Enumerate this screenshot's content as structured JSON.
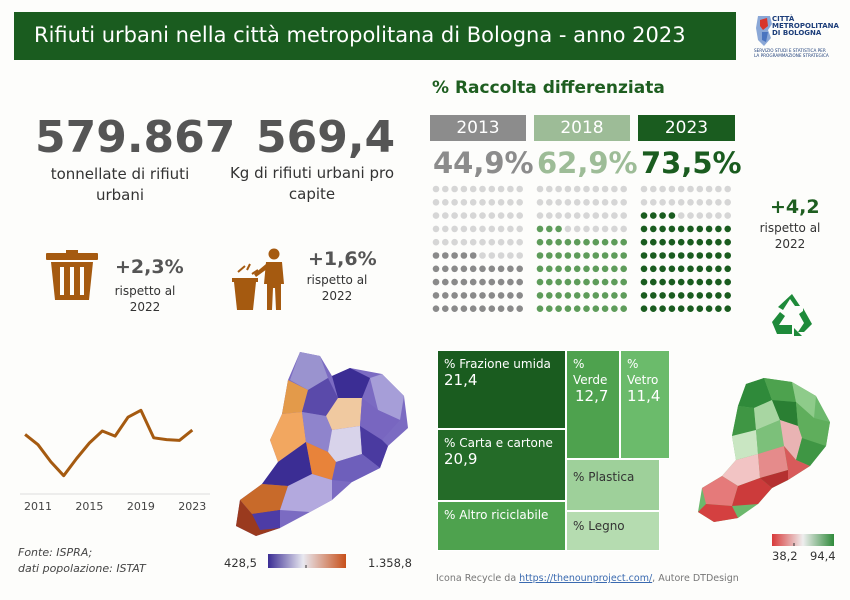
{
  "header": {
    "title": "Rifiuti urbani nella città metropolitana di Bologna - anno 2023"
  },
  "logo": {
    "title": "CITTÀ\nMETROPOLITANA\nDI BOLOGNA",
    "subtitle": "SERVIZIO STUDI E STATISTICA PER\nLA PROGRAMMAZIONE STRATEGICA",
    "icon": "bologna-metro-logo"
  },
  "kpi_total": {
    "value": "579.867",
    "label": "tonnellate di rifiuti urbani",
    "change": "+2,3%",
    "change_label": "rispetto al 2022",
    "icon": "trash-bin-icon"
  },
  "kpi_capita": {
    "value": "569,4",
    "label": "Kg di rifiuti urbani pro capite",
    "change": "+1,6%",
    "change_label": "rispetto al 2022",
    "icon": "person-throwing-trash-icon"
  },
  "raccolta": {
    "title": "% Raccolta differenziata",
    "years": [
      {
        "year": "2013",
        "pct": "44,9%",
        "value": 44.9,
        "box_color": "#8c8c8c",
        "text_color": "#8c8c8c",
        "dot_color": "#8a8a8a",
        "dot_empty": "#d6d6d6"
      },
      {
        "year": "2018",
        "pct": "62,9%",
        "value": 62.9,
        "box_color": "#9dbc97",
        "text_color": "#9dbc97",
        "dot_color": "#5e9c5a",
        "dot_empty": "#d6d6d6"
      },
      {
        "year": "2023",
        "pct": "73,5%",
        "value": 73.5,
        "box_color": "#1a5c1f",
        "text_color": "#1a5c1f",
        "dot_color": "#1a5c1f",
        "dot_empty": "#d6d6d6"
      }
    ],
    "delta": "+4,2",
    "delta_label": "rispetto al 2022",
    "icon": "recycle-icon"
  },
  "chart_data": {
    "type": "line",
    "x": [
      2010,
      2011,
      2012,
      2013,
      2014,
      2015,
      2016,
      2017,
      2018,
      2019,
      2020,
      2021,
      2022,
      2023
    ],
    "values": [
      600,
      588,
      568,
      552,
      572,
      590,
      604,
      598,
      620,
      628,
      596,
      594,
      593,
      605
    ],
    "tick_labels": [
      "2011",
      "2015",
      "2019",
      "2023"
    ],
    "tick_values": [
      2011,
      2015,
      2019,
      2023
    ],
    "ylim": [
      540,
      640
    ],
    "xlim": [
      2009.6,
      2023.6
    ],
    "color": "#a55a10"
  },
  "map_left": {
    "legend_min": "428,5",
    "legend_max": "1.358,8"
  },
  "treemap": [
    {
      "label": "% Frazione umida",
      "value": "21,4"
    },
    {
      "label": "% Carta e cartone",
      "value": "20,9"
    },
    {
      "label": "% Altro riciclabile",
      "value": ""
    },
    {
      "label": "% Verde",
      "value": "12,7"
    },
    {
      "label": "% Vetro",
      "value": "11,4"
    },
    {
      "label": "% Plastica",
      "value": ""
    },
    {
      "label": "% Legno",
      "value": ""
    }
  ],
  "map_right": {
    "legend_min": "38,2",
    "legend_max": "94,4"
  },
  "footer": {
    "source": "Fonte: ISPRA;\ndati popolazione: ISTAT",
    "credit_prefix": "Icona Recycle da ",
    "credit_link": "https://thenounproject.com/",
    "credit_suffix": ", Autore DTDesign"
  },
  "colors": {
    "green_dark": "#1a5c1f",
    "brown": "#a55a10"
  }
}
